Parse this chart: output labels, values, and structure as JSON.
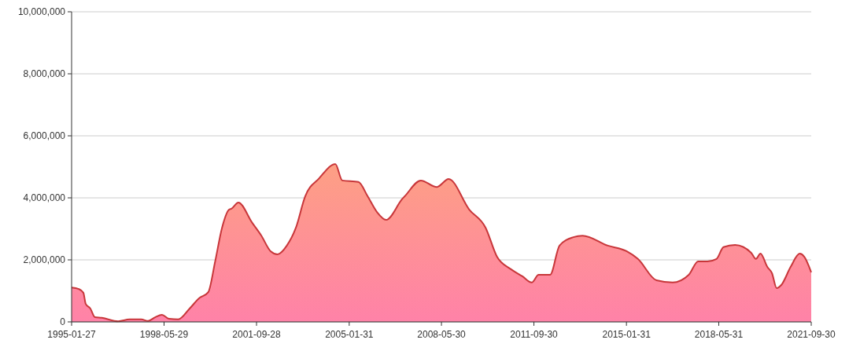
{
  "chart_data": {
    "type": "area",
    "x": [
      "1995-01-27",
      "1995-05",
      "1995-07",
      "1995-08",
      "1995-10",
      "1995-12",
      "1996-03",
      "1996-10",
      "1997-03",
      "1997-08",
      "1997-11",
      "1998-02",
      "1998-05",
      "1998-08",
      "1998-12",
      "1999-05",
      "1999-09",
      "2000-01",
      "2000-04",
      "2000-07",
      "2000-10",
      "2000-11",
      "2001-02",
      "2001-08",
      "2001-12",
      "2002-04",
      "2002-07",
      "2002-11",
      "2003-03",
      "2003-07",
      "2004-01",
      "2004-08",
      "2004-11",
      "2005-06",
      "2005-10",
      "2006-02",
      "2006-06",
      "2007-01",
      "2007-02",
      "2007-09",
      "2008-04",
      "2008-09",
      "2009-06",
      "2010-01",
      "2010-06",
      "2010-12",
      "2011-05",
      "2011-09",
      "2011-12",
      "2012-05",
      "2012-09",
      "2013-03",
      "2013-07",
      "2014-06",
      "2015-02",
      "2015-07",
      "2016-03",
      "2016-10",
      "2017-05",
      "2017-09",
      "2018-01",
      "2018-05",
      "2018-08",
      "2019-01",
      "2019-08",
      "2019-10",
      "2019-12",
      "2020-03",
      "2020-05",
      "2020-07",
      "2020-09",
      "2021-01",
      "2021-05",
      "2021-07",
      "2021-09-30"
    ],
    "series": [
      {
        "color": "#c8363a",
        "values": [
          1110000,
          1060000,
          940000,
          580000,
          430000,
          150000,
          130000,
          20000,
          80000,
          80000,
          30000,
          150000,
          230000,
          100000,
          80000,
          430000,
          760000,
          960000,
          1950000,
          3040000,
          3620000,
          3650000,
          3850000,
          3200000,
          2780000,
          2280000,
          2180000,
          2460000,
          3040000,
          4050000,
          4630000,
          5090000,
          4560000,
          4510000,
          4050000,
          3540000,
          3290000,
          3970000,
          4050000,
          4560000,
          4350000,
          4610000,
          3620000,
          3040000,
          2100000,
          1700000,
          1470000,
          1270000,
          1520000,
          1520000,
          2460000,
          2730000,
          2780000,
          2460000,
          2280000,
          2030000,
          1340000,
          1270000,
          1520000,
          1950000,
          1950000,
          2030000,
          2410000,
          2480000,
          2230000,
          2030000,
          2200000,
          1770000,
          1570000,
          1090000,
          1190000,
          1770000,
          2200000,
          2100000,
          1600000
        ]
      }
    ],
    "xlim": [
      "1995-01-27",
      "2021-09-30"
    ],
    "xticks": [
      "1995-01-27",
      "1998-05-29",
      "2001-09-28",
      "2005-01-31",
      "2008-05-30",
      "2011-09-30",
      "2015-01-31",
      "2018-05-31",
      "2021-09-30"
    ],
    "ylim": [
      0,
      10000000
    ],
    "yticks": [
      0,
      {
        "value": 2000000,
        "label": "2,000,000"
      },
      {
        "value": 4000000,
        "label": "4,000,000"
      },
      {
        "value": 6000000,
        "label": "6,000,000"
      },
      {
        "value": 8000000,
        "label": "8,000,000"
      },
      {
        "value": 10000000,
        "label": "10,000,000"
      }
    ],
    "grid": "y"
  }
}
